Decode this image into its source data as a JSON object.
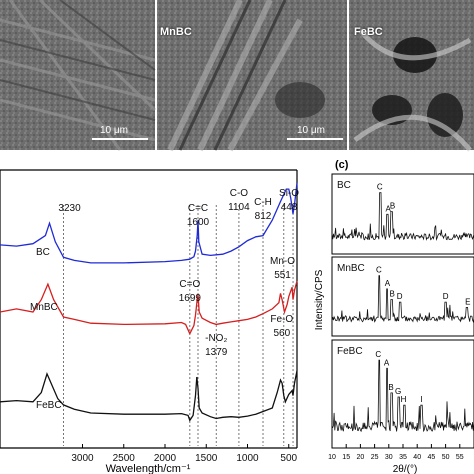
{
  "sem": {
    "panels": [
      {
        "tag": "",
        "scale": "10 μm"
      },
      {
        "tag": "MnBC",
        "scale": "10 μm"
      },
      {
        "tag": "FeBC",
        "scale": ""
      }
    ]
  },
  "colors": {
    "BC": "#1f2bd6",
    "MnBC": "#d61f1f",
    "FeBC": "#111111",
    "guide": "#555555"
  },
  "chart_data": [
    {
      "type": "line",
      "panel": "FTIR",
      "title": "",
      "xlabel": "Wavelength/cm⁻¹",
      "ylabel": "",
      "xlim": [
        4000,
        400
      ],
      "x_ticks": [
        "3000",
        "2500",
        "2000",
        "1500",
        "1000",
        "500"
      ],
      "x_tick_values": [
        3000,
        2500,
        2000,
        1500,
        1000,
        500
      ],
      "series": [
        {
          "name": "BC",
          "color": "#1f2bd6",
          "offset": 2.0,
          "x": [
            4000,
            3800,
            3600,
            3450,
            3400,
            3330,
            3230,
            3100,
            2900,
            2500,
            2000,
            1800,
            1700,
            1650,
            1630,
            1610,
            1600,
            1590,
            1550,
            1450,
            1300,
            1200,
            1104,
            1000,
            900,
            812,
            700,
            600,
            530,
            500,
            475,
            460,
            448,
            430,
            400
          ],
          "y": [
            0.55,
            0.53,
            0.57,
            0.7,
            0.9,
            0.6,
            0.35,
            0.3,
            0.26,
            0.26,
            0.28,
            0.3,
            0.32,
            0.36,
            0.45,
            0.7,
            0.95,
            0.6,
            0.4,
            0.38,
            0.4,
            0.45,
            0.52,
            0.62,
            0.68,
            0.7,
            0.95,
            1.25,
            1.45,
            1.45,
            1.3,
            1.15,
            1.05,
            1.2,
            1.55
          ]
        },
        {
          "name": "MnBC",
          "color": "#d61f1f",
          "offset": 1.0,
          "x": [
            4000,
            3800,
            3600,
            3500,
            3420,
            3350,
            3230,
            3100,
            2900,
            2500,
            2000,
            1800,
            1750,
            1699,
            1650,
            1630,
            1610,
            1600,
            1585,
            1550,
            1450,
            1379,
            1300,
            1200,
            1104,
            1000,
            900,
            800,
            700,
            620,
            600,
            580,
            551,
            520,
            500,
            460,
            448,
            430,
            400
          ],
          "y": [
            0.5,
            0.55,
            0.5,
            0.7,
            0.95,
            0.7,
            0.42,
            0.38,
            0.32,
            0.3,
            0.31,
            0.33,
            0.3,
            0.15,
            0.28,
            0.45,
            0.7,
            0.78,
            0.5,
            0.4,
            0.33,
            0.3,
            0.32,
            0.34,
            0.36,
            0.38,
            0.42,
            0.48,
            0.55,
            0.65,
            0.8,
            0.7,
            0.5,
            0.62,
            0.75,
            0.9,
            0.7,
            0.85,
            1.0
          ]
        },
        {
          "name": "FeBC",
          "color": "#111111",
          "offset": 0.0,
          "x": [
            4000,
            3800,
            3600,
            3500,
            3430,
            3380,
            3300,
            3230,
            3100,
            2900,
            2500,
            2000,
            1800,
            1720,
            1699,
            1660,
            1630,
            1615,
            1600,
            1585,
            1550,
            1450,
            1379,
            1300,
            1200,
            1104,
            1000,
            900,
            800,
            700,
            640,
            600,
            580,
            560,
            540,
            500,
            460,
            448,
            430,
            400
          ],
          "y": [
            0.6,
            0.62,
            0.6,
            0.75,
            1.05,
            0.9,
            0.65,
            0.55,
            0.48,
            0.42,
            0.4,
            0.4,
            0.41,
            0.38,
            0.3,
            0.38,
            0.7,
            1.0,
            0.82,
            0.5,
            0.42,
            0.36,
            0.33,
            0.35,
            0.36,
            0.35,
            0.37,
            0.4,
            0.45,
            0.5,
            0.75,
            0.95,
            0.9,
            0.7,
            0.6,
            0.72,
            0.78,
            0.7,
            0.9,
            1.1
          ]
        }
      ],
      "annotations": [
        {
          "x": 3230,
          "lines": [
            "3230"
          ],
          "series": "BC"
        },
        {
          "x": 1600,
          "lines": [
            "C=C",
            "1600"
          ],
          "series": "BC"
        },
        {
          "x": 1104,
          "lines": [
            "C-O",
            "1104"
          ],
          "series": "BC"
        },
        {
          "x": 812,
          "lines": [
            "C-H",
            "812"
          ],
          "series": "BC"
        },
        {
          "x": 448,
          "lines": [
            "Si-O",
            "448"
          ],
          "series": "BC"
        },
        {
          "x": 1699,
          "lines": [
            "C=O",
            "1699"
          ],
          "series": "MnBC"
        },
        {
          "x": 551,
          "lines": [
            "Mn-O",
            "551"
          ],
          "series": "MnBC"
        },
        {
          "x": 1379,
          "lines": [
            "-NO₂",
            "1379"
          ],
          "series": "FeBC"
        },
        {
          "x": 560,
          "lines": [
            "Fe-O",
            "560"
          ],
          "series": "FeBC"
        }
      ],
      "guide_lines": [
        3230,
        1699,
        1600,
        1379,
        1104,
        812,
        560,
        448
      ],
      "grid": false
    },
    {
      "type": "line",
      "panel": "XRD",
      "panel_label": "(c)",
      "title": "",
      "xlabel": "2θ/(°)",
      "ylabel": "Intensity/CPS",
      "xlim": [
        10,
        60
      ],
      "x_ticks": [
        "10",
        "15",
        "20",
        "25",
        "30",
        "35",
        "40",
        "45",
        "50",
        "55"
      ],
      "x_tick_values": [
        10,
        15,
        20,
        25,
        30,
        35,
        40,
        45,
        50,
        55
      ],
      "subplots": [
        {
          "name": "BC",
          "peaks": [
            {
              "x": 27.0,
              "h": 0.95,
              "label": "C"
            },
            {
              "x": 29.5,
              "h": 0.55,
              "label": "A"
            },
            {
              "x": 31.0,
              "h": 0.6,
              "label": "B"
            }
          ],
          "labels": [
            {
              "x": 26.8,
              "text": "C"
            },
            {
              "x": 29.8,
              "text": "A"
            },
            {
              "x": 31.3,
              "text": "B"
            }
          ]
        },
        {
          "name": "MnBC",
          "peaks": [
            {
              "x": 26.6,
              "h": 0.95,
              "label": "C"
            },
            {
              "x": 29.4,
              "h": 0.7,
              "label": "A"
            },
            {
              "x": 31.0,
              "h": 0.5,
              "label": "B"
            },
            {
              "x": 34.0,
              "h": 0.45,
              "label": "D"
            },
            {
              "x": 50.0,
              "h": 0.45,
              "label": "D"
            },
            {
              "x": 57.5,
              "h": 0.35,
              "label": "E"
            }
          ],
          "labels": [
            {
              "x": 26.5,
              "text": "C"
            },
            {
              "x": 29.5,
              "text": "A"
            },
            {
              "x": 31.2,
              "text": "B"
            },
            {
              "x": 33.8,
              "text": "D"
            },
            {
              "x": 50.0,
              "text": "D"
            },
            {
              "x": 57.8,
              "text": "E"
            }
          ]
        },
        {
          "name": "FeBC",
          "peaks": [
            {
              "x": 26.6,
              "h": 0.95,
              "label": "C"
            },
            {
              "x": 29.4,
              "h": 0.85,
              "label": "A"
            },
            {
              "x": 31.0,
              "h": 0.55,
              "label": "B"
            },
            {
              "x": 33.5,
              "h": 0.5,
              "label": "G"
            },
            {
              "x": 35.5,
              "h": 0.4,
              "label": "H"
            },
            {
              "x": 41.5,
              "h": 0.4,
              "label": "I"
            }
          ],
          "labels": [
            {
              "x": 26.3,
              "text": "C"
            },
            {
              "x": 29.2,
              "text": "A"
            },
            {
              "x": 30.8,
              "text": "B"
            },
            {
              "x": 33.3,
              "text": "G"
            },
            {
              "x": 35.2,
              "text": "H"
            },
            {
              "x": 41.5,
              "text": "I"
            }
          ]
        }
      ]
    }
  ]
}
